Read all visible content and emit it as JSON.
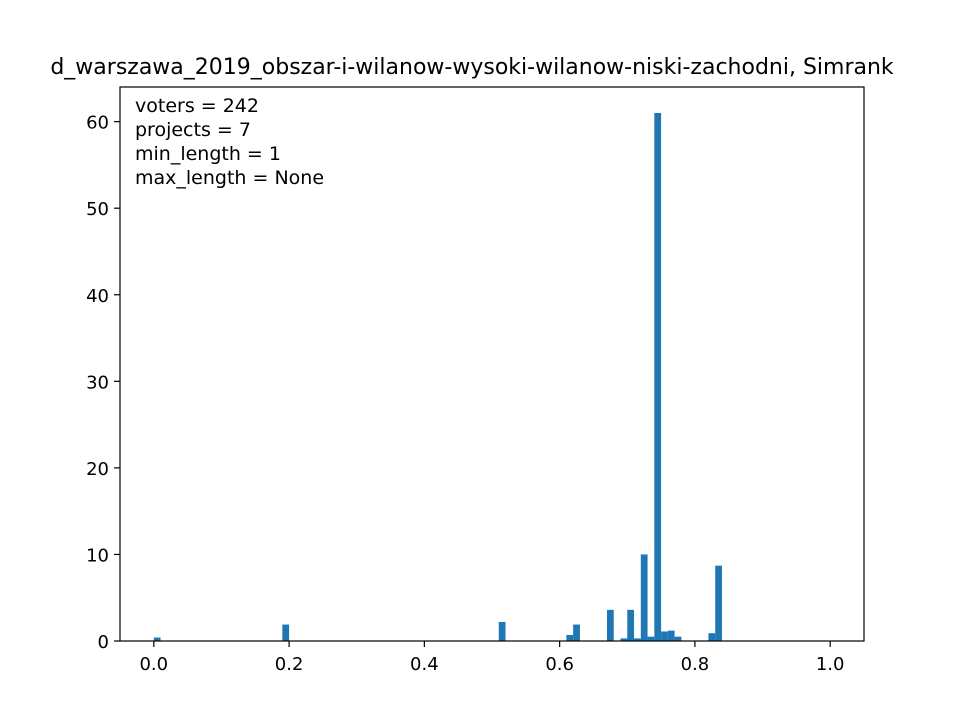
{
  "chart_data": {
    "type": "bar",
    "title": "d_warszawa_2019_obszar-i-wilanow-wysoki-wilanow-niski-zachodni, Simrank",
    "xlabel": "",
    "ylabel": "",
    "xlim": [
      -0.05,
      1.05
    ],
    "ylim": [
      0,
      64
    ],
    "grid": false,
    "bar_width": 0.01,
    "color": "#1f77b4",
    "x_ticks": [
      0.0,
      0.2,
      0.4,
      0.6,
      0.8,
      1.0
    ],
    "x_tick_labels": [
      "0.0",
      "0.2",
      "0.4",
      "0.6",
      "0.8",
      "1.0"
    ],
    "y_ticks": [
      0,
      10,
      20,
      30,
      40,
      50,
      60
    ],
    "y_tick_labels": [
      "0",
      "10",
      "20",
      "30",
      "40",
      "50",
      "60"
    ],
    "annotations": [
      "voters = 242",
      "projects = 7",
      "min_length = 1",
      "max_length = None"
    ],
    "bins": [
      {
        "x": 0.0,
        "value": 0.4
      },
      {
        "x": 0.19,
        "value": 1.9
      },
      {
        "x": 0.51,
        "value": 2.2
      },
      {
        "x": 0.61,
        "value": 0.7
      },
      {
        "x": 0.62,
        "value": 1.9
      },
      {
        "x": 0.67,
        "value": 3.6
      },
      {
        "x": 0.69,
        "value": 0.3
      },
      {
        "x": 0.7,
        "value": 3.6
      },
      {
        "x": 0.71,
        "value": 0.3
      },
      {
        "x": 0.72,
        "value": 10.0
      },
      {
        "x": 0.73,
        "value": 0.5
      },
      {
        "x": 0.74,
        "value": 61.0
      },
      {
        "x": 0.75,
        "value": 1.1
      },
      {
        "x": 0.76,
        "value": 1.2
      },
      {
        "x": 0.77,
        "value": 0.5
      },
      {
        "x": 0.82,
        "value": 0.9
      },
      {
        "x": 0.83,
        "value": 8.7
      }
    ]
  }
}
